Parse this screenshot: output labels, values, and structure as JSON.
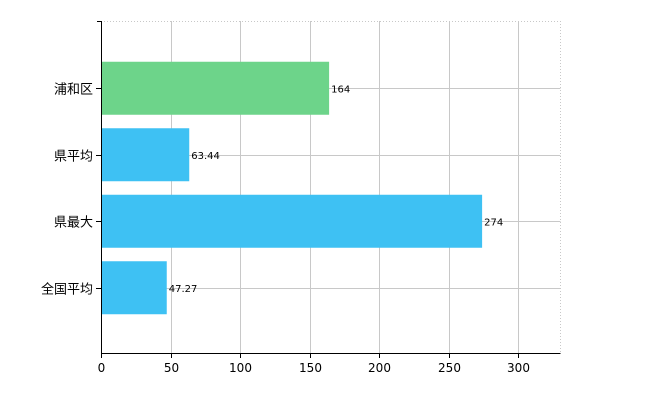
{
  "chart_data": {
    "type": "bar",
    "orientation": "horizontal",
    "categories": [
      "浦和区",
      "県平均",
      "県最大",
      "全国平均"
    ],
    "values": [
      164,
      63.44,
      274,
      47.27
    ],
    "data_labels": [
      "164",
      "63.44",
      "274",
      "47.27"
    ],
    "colors": [
      "#6dd48a",
      "#3ec1f3",
      "#3ec1f3",
      "#3ec1f3"
    ],
    "title": "",
    "xlabel": "",
    "ylabel": "",
    "xlim": [
      0,
      330
    ],
    "xticks": [
      0,
      50,
      100,
      150,
      200,
      250,
      300
    ],
    "xtick_labels": [
      "0",
      "50",
      "100",
      "150",
      "200",
      "250",
      "300"
    ],
    "grid": true,
    "legend": "none"
  }
}
